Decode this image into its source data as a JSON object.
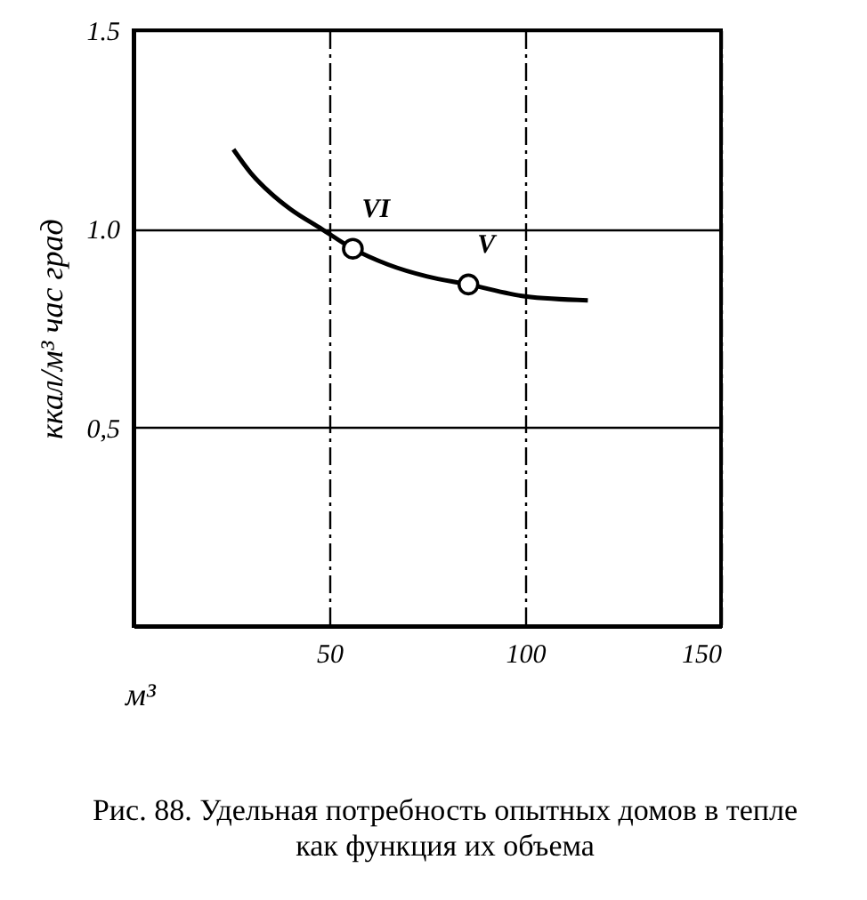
{
  "chart_data": {
    "type": "line",
    "xlabel": "м³",
    "ylabel": "ккал/м³ час град",
    "xlim": [
      0,
      150
    ],
    "ylim": [
      0,
      1.5
    ],
    "xticks": [
      50,
      100,
      150
    ],
    "yticks": [
      {
        "value": 0.5,
        "label": "0,5"
      },
      {
        "value": 1,
        "label": "1.0"
      },
      1.5
    ],
    "grid": true,
    "series": [
      {
        "color": "#000000",
        "x": [
          25.5,
          30,
          35,
          40,
          48,
          56,
          65,
          75,
          85.5,
          100,
          116
        ],
        "values": [
          1.2,
          1.14,
          1.09,
          1.05,
          1.0,
          0.95,
          0.91,
          0.88,
          0.86,
          0.83,
          0.82
        ]
      },
      {
        "type": "scatter",
        "marker": "circle",
        "color": "#000000",
        "x": [
          56,
          85.5
        ],
        "values": [
          0.95,
          0.86
        ]
      }
    ],
    "annotations": [
      {
        "text": "VI",
        "x": 56,
        "y": 0.95
      },
      {
        "text": "V",
        "x": 85.5,
        "y": 0.86
      },
      "Рис. 88. Удельная потребность опытных домов в тепле как функция их объема"
    ]
  }
}
